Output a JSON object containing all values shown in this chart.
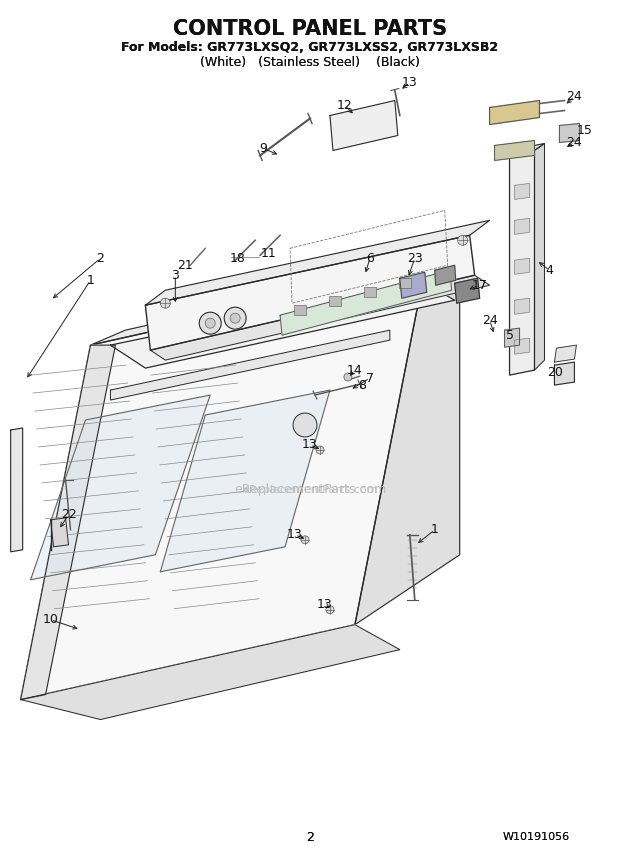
{
  "title": "CONTROL PANEL PARTS",
  "subtitle_line1": "For Models: GR773LXSQ2, GR773LXSS2, GR773LXSB2",
  "subtitle_line2": "(White)   (Stainless Steel)    (Black)",
  "page_number": "2",
  "part_number": "W10191056",
  "watermark": "eReplacementParts.com",
  "bg_color": "#ffffff",
  "line_color": "#2a2a2a",
  "text_color": "#111111",
  "title_fontsize": 15,
  "subtitle_fontsize": 9,
  "label_fontsize": 9,
  "fig_width": 6.2,
  "fig_height": 8.56,
  "dpi": 100
}
